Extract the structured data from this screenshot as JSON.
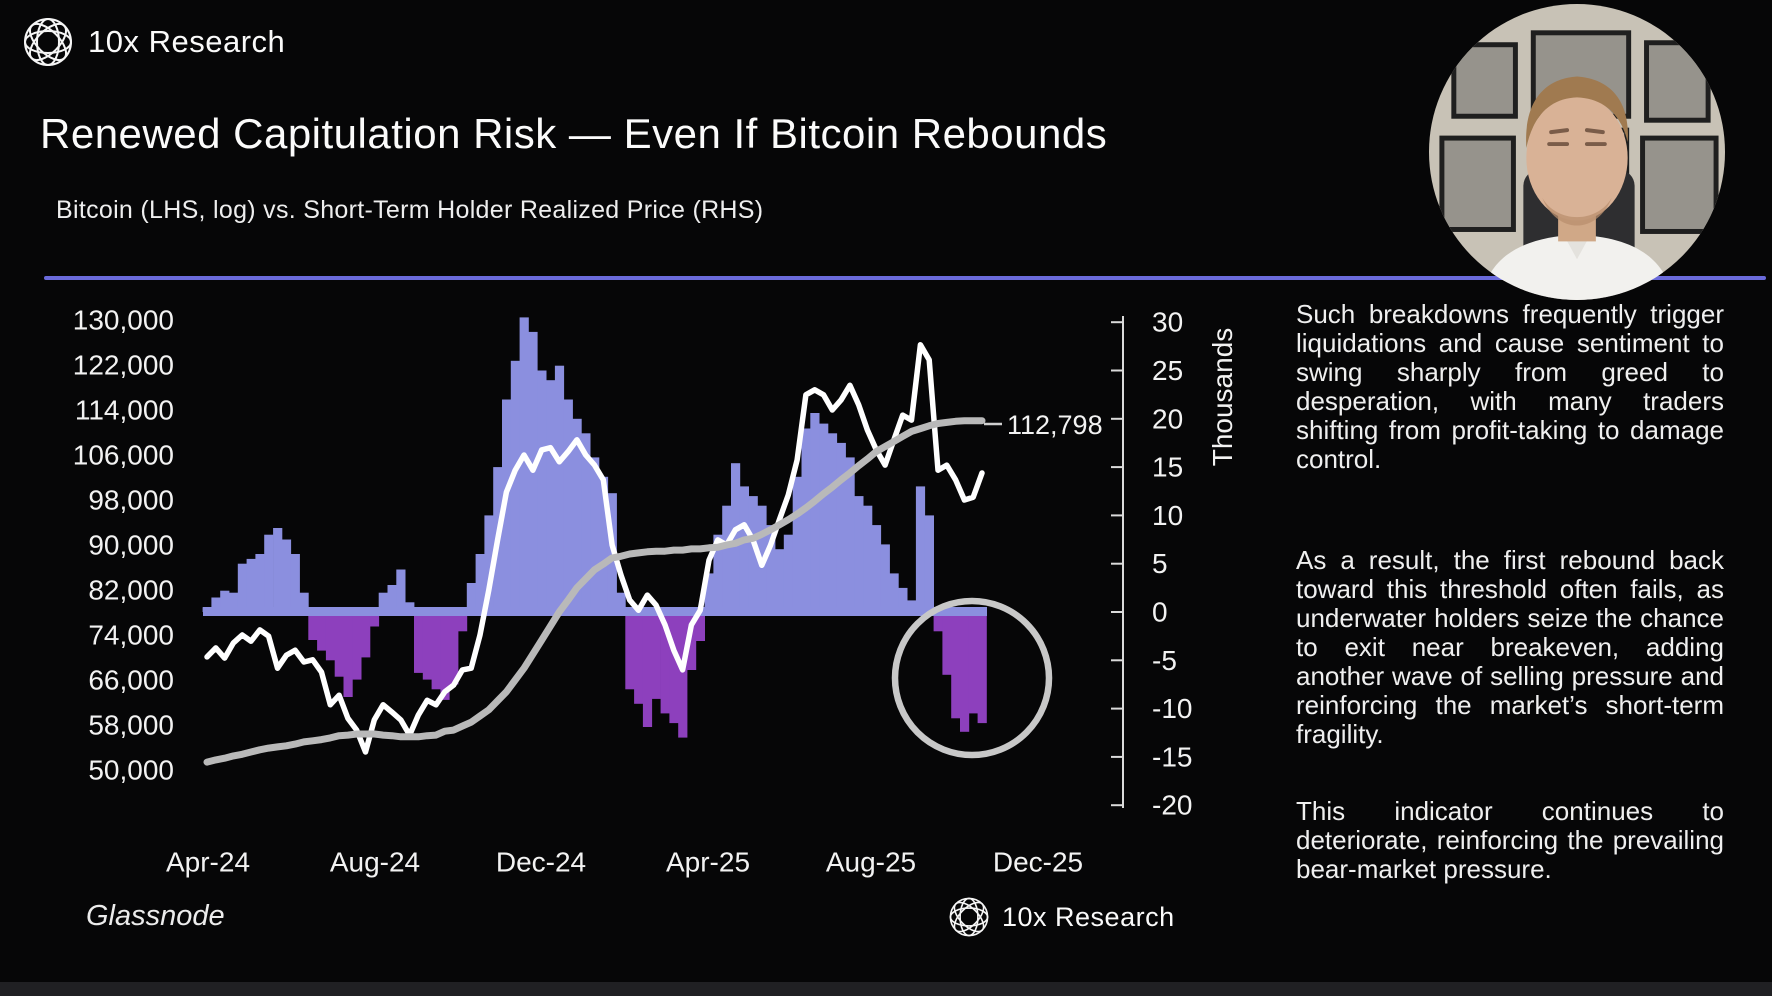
{
  "brand": {
    "name": "10x Research",
    "logo_icon": "globe-lattice-icon"
  },
  "header": {
    "title": "Renewed Capitulation Risk — Even If Bitcoin Rebounds",
    "subtitle": "Bitcoin (LHS, log) vs. Short-Term Holder Realized Price (RHS)"
  },
  "source_label": "Glassnode",
  "footer_brand": {
    "name": "10x Research",
    "logo_icon": "globe-lattice-icon"
  },
  "right_panel": {
    "paragraphs": [
      "Such breakdowns frequently trigger liquidations and cause sentiment to swing sharply from greed to desperation, with many traders shifting from profit-taking to damage control.",
      "As a result, the first rebound back toward this threshold often fails, as underwater holders seize the chance to exit near breakeven, adding another wave of selling pressure and reinforcing the market’s short-term fragility.",
      "This indicator continues to deteriorate, reinforcing the prevailing bear-market pressure."
    ]
  },
  "presenter_video": {
    "description": "circular webcam of presenter in white shirt, framed pictures on wall"
  },
  "colors": {
    "background": "#060607",
    "divider": "#6a6ada",
    "bar_positive": "#8b8fdf",
    "bar_negative": "#8d40bd",
    "btc_line": "#ffffff",
    "sth_line": "#b9b9b9",
    "highlight_circle": "#c8c8c8",
    "axis_text": "#f2f2f2",
    "bottom_bar": "#202023"
  },
  "chart_data": {
    "type": "bar",
    "subtype": "bars-plus-two-lines",
    "title": "Bitcoin (LHS, log) vs. Short-Term Holder Realized Price (RHS)",
    "annotation_label": "112,798",
    "highlight": {
      "description": "gray circle around recent negative spread bars (Nov-25 capitulation)"
    },
    "left_axis": {
      "tick_labels": [
        "130,000",
        "122,000",
        "114,000",
        "106,000",
        "98,000",
        "90,000",
        "82,000",
        "74,000",
        "66,000",
        "58,000",
        "50,000"
      ],
      "tick_values": [
        130000,
        122000,
        114000,
        106000,
        98000,
        90000,
        82000,
        74000,
        66000,
        58000,
        50000
      ],
      "range": [
        50000,
        130000
      ],
      "scale": "log"
    },
    "right_axis": {
      "title": "Thousands",
      "tick_labels": [
        "30",
        "25",
        "20",
        "15",
        "10",
        "5",
        "0",
        "-5",
        "-10",
        "-15",
        "-20"
      ],
      "tick_values": [
        30,
        25,
        20,
        15,
        10,
        5,
        0,
        -5,
        -10,
        -15,
        -20
      ],
      "range": [
        -20,
        30
      ]
    },
    "x_axis": {
      "tick_labels": [
        "Apr-24",
        "Aug-24",
        "Dec-24",
        "Apr-25",
        "Aug-25",
        "Dec-25"
      ]
    },
    "grid": false,
    "legend": "none",
    "series": [
      {
        "name": "Bitcoin Price (LHS)",
        "type": "line",
        "axis": "left",
        "color": "#ffffff",
        "values": [
          70100,
          71700,
          69900,
          72600,
          74000,
          72900,
          74900,
          73800,
          68100,
          70400,
          71300,
          69200,
          69600,
          67400,
          61600,
          63300,
          59200,
          57100,
          53200,
          58900,
          61600,
          60300,
          58900,
          56200,
          59800,
          62400,
          61600,
          63900,
          65100,
          67800,
          68100,
          74000,
          82000,
          90900,
          99400,
          103300,
          106000,
          103300,
          106900,
          107300,
          104800,
          106600,
          108700,
          106000,
          104200,
          101600,
          90000,
          84700,
          80200,
          78400,
          81100,
          79300,
          75800,
          71300,
          67800,
          75800,
          78400,
          87300,
          90900,
          90000,
          92700,
          93600,
          90900,
          86400,
          90000,
          94500,
          98900,
          105100,
          116700,
          117600,
          116700,
          114000,
          115800,
          118400,
          114900,
          110400,
          106900,
          104200,
          108700,
          113100,
          112200,
          125600,
          122900,
          103300,
          104200,
          101600,
          98000,
          98500,
          102800
        ]
      },
      {
        "name": "Short-Term Holder Realized Price (LHS)",
        "type": "line",
        "axis": "left",
        "color": "#b9b9b9",
        "values": [
          51400,
          51800,
          52100,
          52500,
          52800,
          53200,
          53600,
          53900,
          54100,
          54300,
          54600,
          55000,
          55200,
          55400,
          55700,
          56100,
          56200,
          56400,
          56400,
          56400,
          56200,
          56100,
          55900,
          55900,
          55900,
          56100,
          56200,
          56900,
          57100,
          57800,
          58500,
          59600,
          60700,
          62300,
          63900,
          66000,
          68100,
          70600,
          73100,
          75600,
          78100,
          80200,
          82400,
          84000,
          85600,
          86600,
          87700,
          88000,
          88400,
          88600,
          88800,
          88900,
          88900,
          89100,
          89100,
          89300,
          89300,
          89500,
          89600,
          90000,
          90300,
          90900,
          91200,
          91900,
          92700,
          93600,
          94500,
          95500,
          96600,
          97800,
          99100,
          100300,
          101600,
          102800,
          104100,
          105300,
          106600,
          107500,
          108400,
          109300,
          110200,
          110700,
          111200,
          111600,
          111800,
          112000,
          112100,
          112100,
          112100
        ]
      },
      {
        "name": "Price minus STH Realized Price (RHS, thousands)",
        "type": "bar",
        "axis": "right",
        "color_positive": "#8b8fdf",
        "color_negative": "#8d40bd",
        "values": [
          0.5,
          1.5,
          2.2,
          2.0,
          5.0,
          5.5,
          6.0,
          8.0,
          8.7,
          7.5,
          6.0,
          2.0,
          -2.9,
          -4.0,
          -5.0,
          -6.7,
          -8.8,
          -7.0,
          -4.7,
          -1.5,
          2.0,
          2.8,
          4.4,
          1.0,
          -6.3,
          -7.0,
          -8.0,
          -9.1,
          -7.5,
          -2.0,
          3.0,
          6.0,
          10.0,
          15.0,
          22.0,
          26.0,
          30.5,
          29.0,
          25.0,
          24.0,
          25.5,
          22.0,
          20.0,
          18.5,
          16.0,
          14.0,
          12.3,
          2.0,
          -8.0,
          -9.5,
          -11.9,
          -9.0,
          -10.5,
          -11.5,
          -13.0,
          -6.0,
          -3.0,
          4.0,
          8.0,
          11.0,
          15.4,
          13.0,
          12.0,
          11.0,
          9.0,
          6.5,
          8.0,
          14.0,
          19.0,
          20.6,
          19.5,
          18.5,
          17.5,
          16.0,
          12.0,
          11.0,
          9.0,
          7.0,
          4.0,
          2.5,
          1.2,
          13.0,
          10.0,
          -2.0,
          -6.5,
          -11.0,
          -12.4,
          -10.5,
          -11.5
        ]
      }
    ]
  }
}
